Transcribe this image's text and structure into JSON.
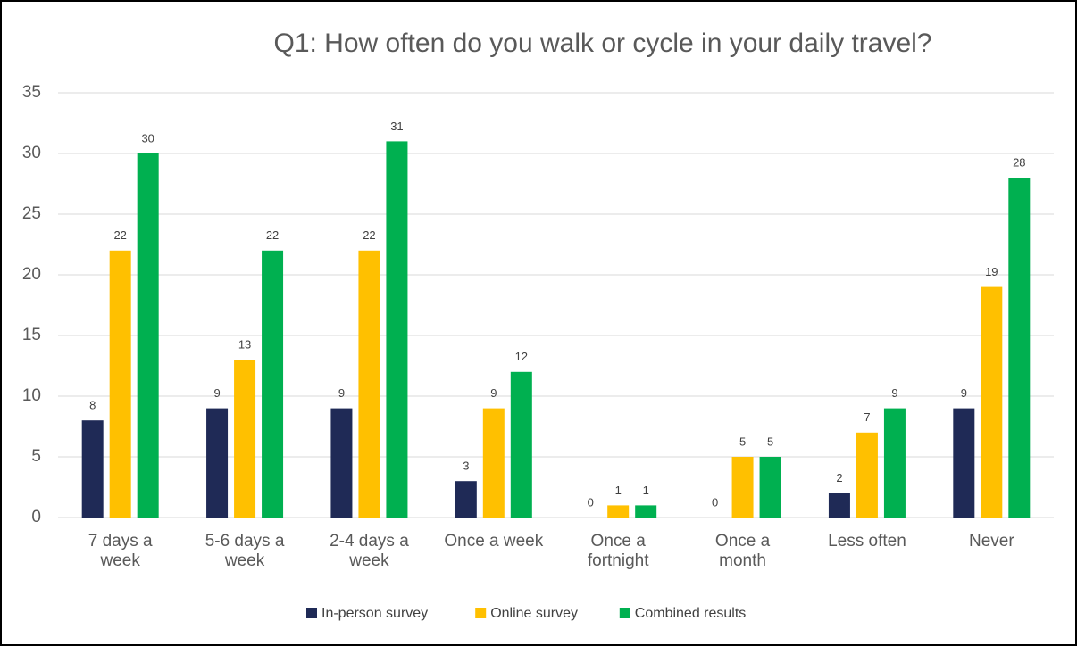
{
  "chart_data": {
    "type": "bar",
    "title": "Q1: How often do you walk or cycle in your daily travel?",
    "categories": [
      "7 days a week",
      "5-6 days a week",
      "2-4 days a week",
      "Once a week",
      "Once a fortnight",
      "Once a month",
      "Less often",
      "Never"
    ],
    "series": [
      {
        "name": "In-person survey",
        "color": "#1f2a56",
        "values": [
          8,
          9,
          9,
          3,
          0,
          0,
          2,
          9
        ]
      },
      {
        "name": "Online survey",
        "color": "#ffc000",
        "values": [
          22,
          13,
          22,
          9,
          1,
          5,
          7,
          19
        ]
      },
      {
        "name": "Combined results",
        "color": "#00b050",
        "values": [
          30,
          22,
          31,
          12,
          1,
          5,
          9,
          28
        ]
      }
    ],
    "ylim": [
      0,
      35
    ],
    "yticks": [
      0,
      5,
      10,
      15,
      20,
      25,
      30,
      35
    ],
    "grid": true,
    "legend": "bottom"
  }
}
